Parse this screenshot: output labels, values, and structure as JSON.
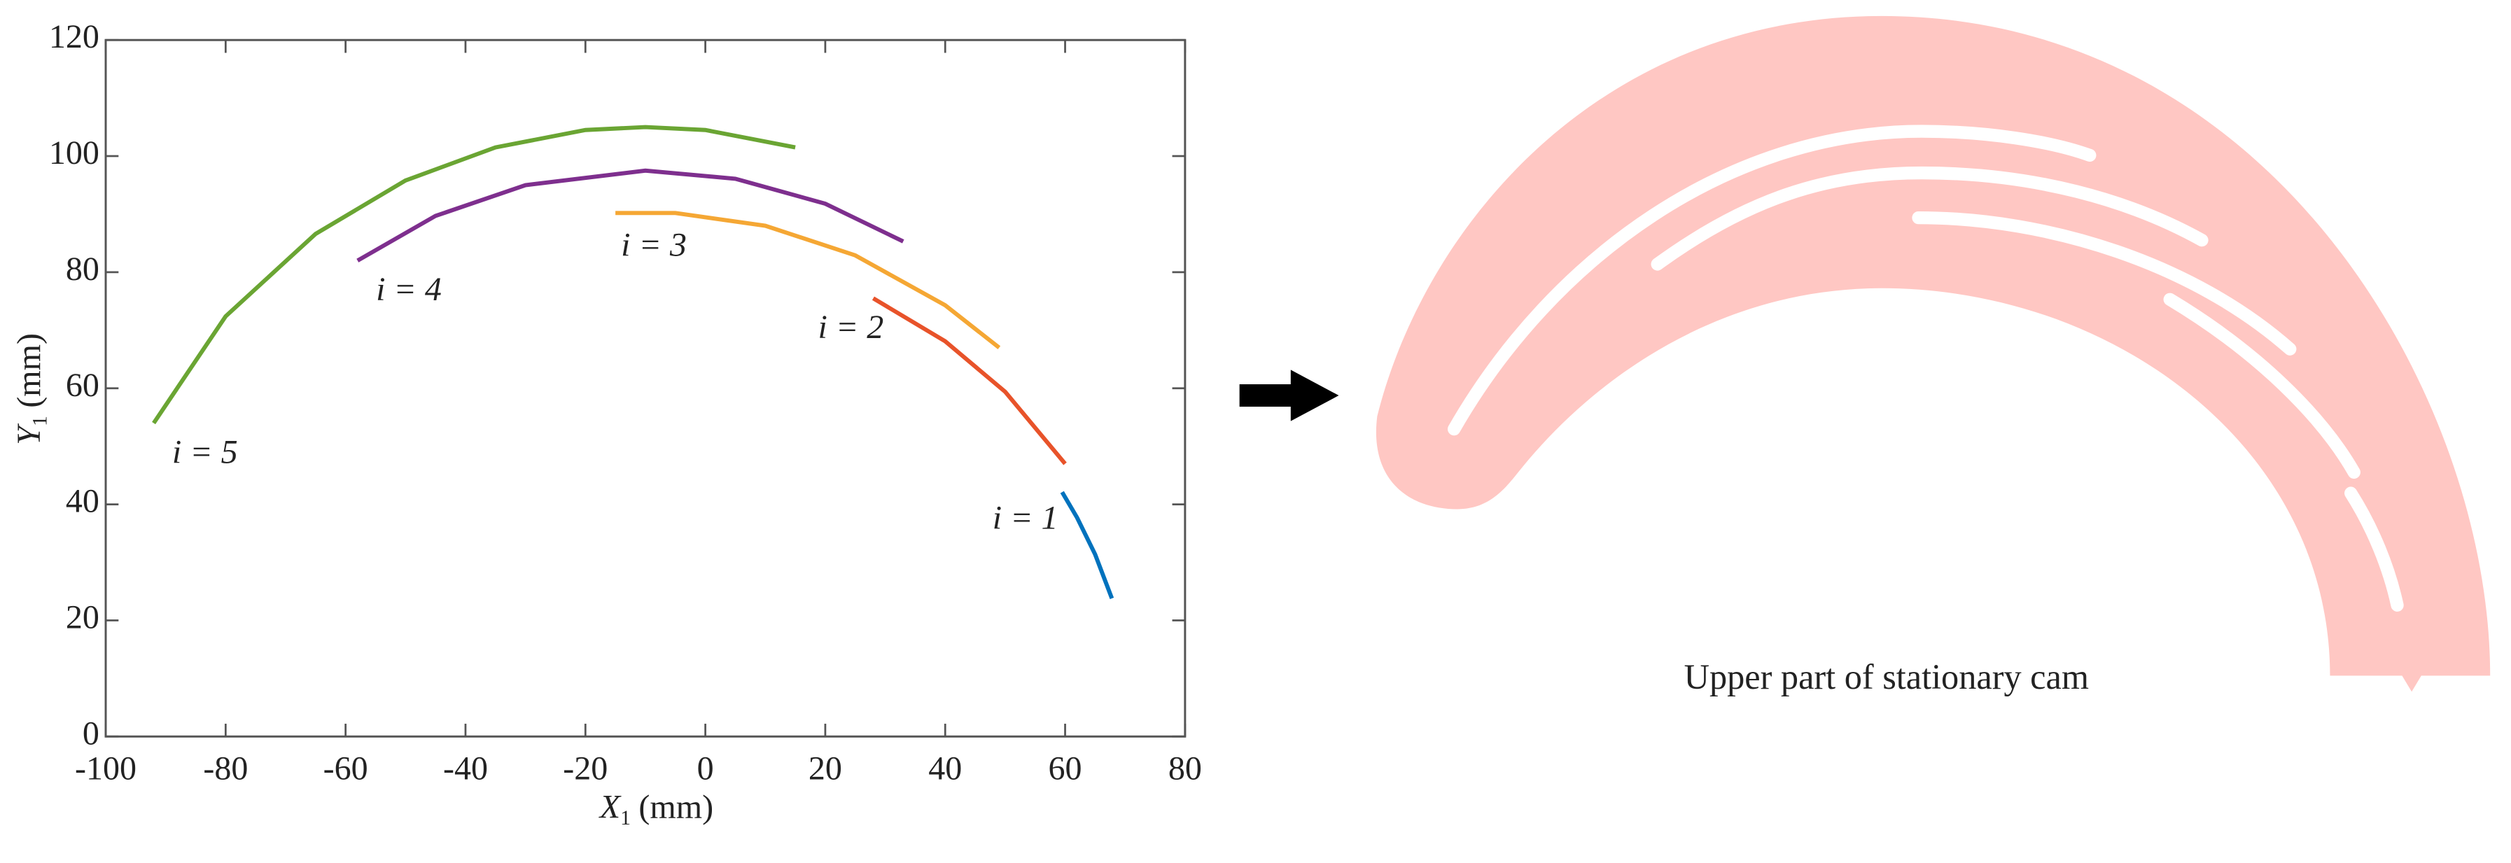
{
  "chart_data": {
    "type": "line",
    "xlabel": {
      "symbol": "X",
      "subscript": "1",
      "unit": "(mm)"
    },
    "ylabel": {
      "symbol": "Y",
      "subscript": "1",
      "unit": "(mm)"
    },
    "xlim": [
      -100,
      80
    ],
    "ylim": [
      0,
      120
    ],
    "xticks": [
      -100,
      -80,
      -60,
      -40,
      -20,
      0,
      20,
      40,
      60,
      80
    ],
    "yticks": [
      0,
      20,
      40,
      60,
      80,
      100,
      120
    ],
    "grid": false,
    "series": [
      {
        "name": "i = 1",
        "color": "#0072bd",
        "x": [
          59.5,
          62,
          65,
          67.8
        ],
        "values": [
          42.1,
          37.7,
          31.4,
          23.8
        ]
      },
      {
        "name": "i = 2",
        "color": "#e8532a",
        "x": [
          28,
          40,
          50,
          60
        ],
        "values": [
          75.5,
          68.1,
          59.4,
          47.0
        ]
      },
      {
        "name": "i = 3",
        "color": "#f5a734",
        "x": [
          -15,
          -5,
          10,
          25,
          40,
          49
        ],
        "values": [
          90.2,
          90.2,
          88.0,
          82.9,
          74.3,
          67.0
        ]
      },
      {
        "name": "i = 4",
        "color": "#7e2f8e",
        "x": [
          -58,
          -45,
          -30,
          -10,
          5,
          20,
          33
        ],
        "values": [
          82.0,
          89.7,
          95.0,
          97.5,
          96.1,
          91.8,
          85.3
        ]
      },
      {
        "name": "i = 5",
        "color": "#6aa533",
        "x": [
          -92,
          -80,
          -65,
          -50,
          -35,
          -20,
          -10,
          0,
          15
        ],
        "values": [
          54.0,
          72.4,
          86.6,
          95.8,
          101.5,
          104.5,
          105.0,
          104.5,
          101.5
        ]
      }
    ]
  },
  "diagram": {
    "caption": "Upper part of stationary cam"
  }
}
